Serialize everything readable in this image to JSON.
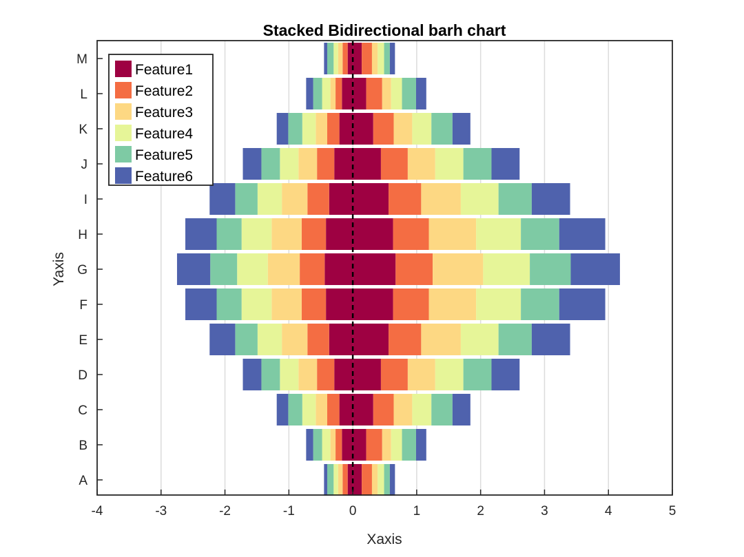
{
  "chart_data": {
    "type": "bar",
    "orientation": "horizontal",
    "stacked": true,
    "bidirectional": true,
    "title": "Stacked Bidirectional barh chart",
    "xlabel": "Xaxis",
    "ylabel": "Yaxis",
    "xlim": [
      -4,
      5
    ],
    "xticks": [
      -4,
      -3,
      -2,
      -1,
      0,
      1,
      2,
      3,
      4,
      5
    ],
    "grid": "vertical",
    "legend_position": "top-left",
    "categories": [
      "A",
      "B",
      "C",
      "D",
      "E",
      "F",
      "G",
      "H",
      "I",
      "J",
      "K",
      "L",
      "M"
    ],
    "series": [
      {
        "name": "Feature1",
        "color": "#9e0142",
        "left": [
          0.08,
          0.17,
          0.21,
          0.29,
          0.37,
          0.42,
          0.44,
          0.42,
          0.37,
          0.29,
          0.21,
          0.17,
          0.08
        ],
        "right": [
          0.14,
          0.21,
          0.32,
          0.44,
          0.56,
          0.63,
          0.67,
          0.63,
          0.56,
          0.44,
          0.32,
          0.21,
          0.14
        ]
      },
      {
        "name": "Feature2",
        "color": "#f46d43",
        "left": [
          0.08,
          0.1,
          0.19,
          0.27,
          0.34,
          0.38,
          0.39,
          0.38,
          0.34,
          0.27,
          0.19,
          0.1,
          0.08
        ],
        "right": [
          0.16,
          0.25,
          0.32,
          0.42,
          0.51,
          0.56,
          0.58,
          0.56,
          0.51,
          0.42,
          0.32,
          0.25,
          0.16
        ]
      },
      {
        "name": "Feature3",
        "color": "#fdd883",
        "left": [
          0.07,
          0.08,
          0.18,
          0.29,
          0.4,
          0.47,
          0.5,
          0.47,
          0.4,
          0.29,
          0.18,
          0.08,
          0.07
        ],
        "right": [
          0.09,
          0.14,
          0.29,
          0.43,
          0.62,
          0.74,
          0.79,
          0.74,
          0.62,
          0.43,
          0.29,
          0.14,
          0.09
        ]
      },
      {
        "name": "Feature4",
        "color": "#e6f598",
        "left": [
          0.07,
          0.13,
          0.21,
          0.29,
          0.38,
          0.47,
          0.48,
          0.47,
          0.38,
          0.29,
          0.21,
          0.13,
          0.07
        ],
        "right": [
          0.1,
          0.17,
          0.3,
          0.44,
          0.59,
          0.7,
          0.73,
          0.7,
          0.59,
          0.44,
          0.3,
          0.17,
          0.1
        ]
      },
      {
        "name": "Feature5",
        "color": "#7ecaa4",
        "left": [
          0.1,
          0.14,
          0.22,
          0.29,
          0.35,
          0.39,
          0.42,
          0.39,
          0.35,
          0.29,
          0.22,
          0.14,
          0.1
        ],
        "right": [
          0.09,
          0.22,
          0.33,
          0.44,
          0.52,
          0.6,
          0.64,
          0.6,
          0.52,
          0.44,
          0.33,
          0.22,
          0.09
        ]
      },
      {
        "name": "Feature6",
        "color": "#4f62ad",
        "left": [
          0.05,
          0.11,
          0.18,
          0.29,
          0.4,
          0.49,
          0.52,
          0.49,
          0.4,
          0.29,
          0.18,
          0.11,
          0.05
        ],
        "right": [
          0.08,
          0.16,
          0.28,
          0.44,
          0.6,
          0.72,
          0.77,
          0.72,
          0.6,
          0.44,
          0.28,
          0.16,
          0.08
        ]
      }
    ],
    "zero_line": {
      "style": "dashed",
      "color": "#000000"
    }
  }
}
